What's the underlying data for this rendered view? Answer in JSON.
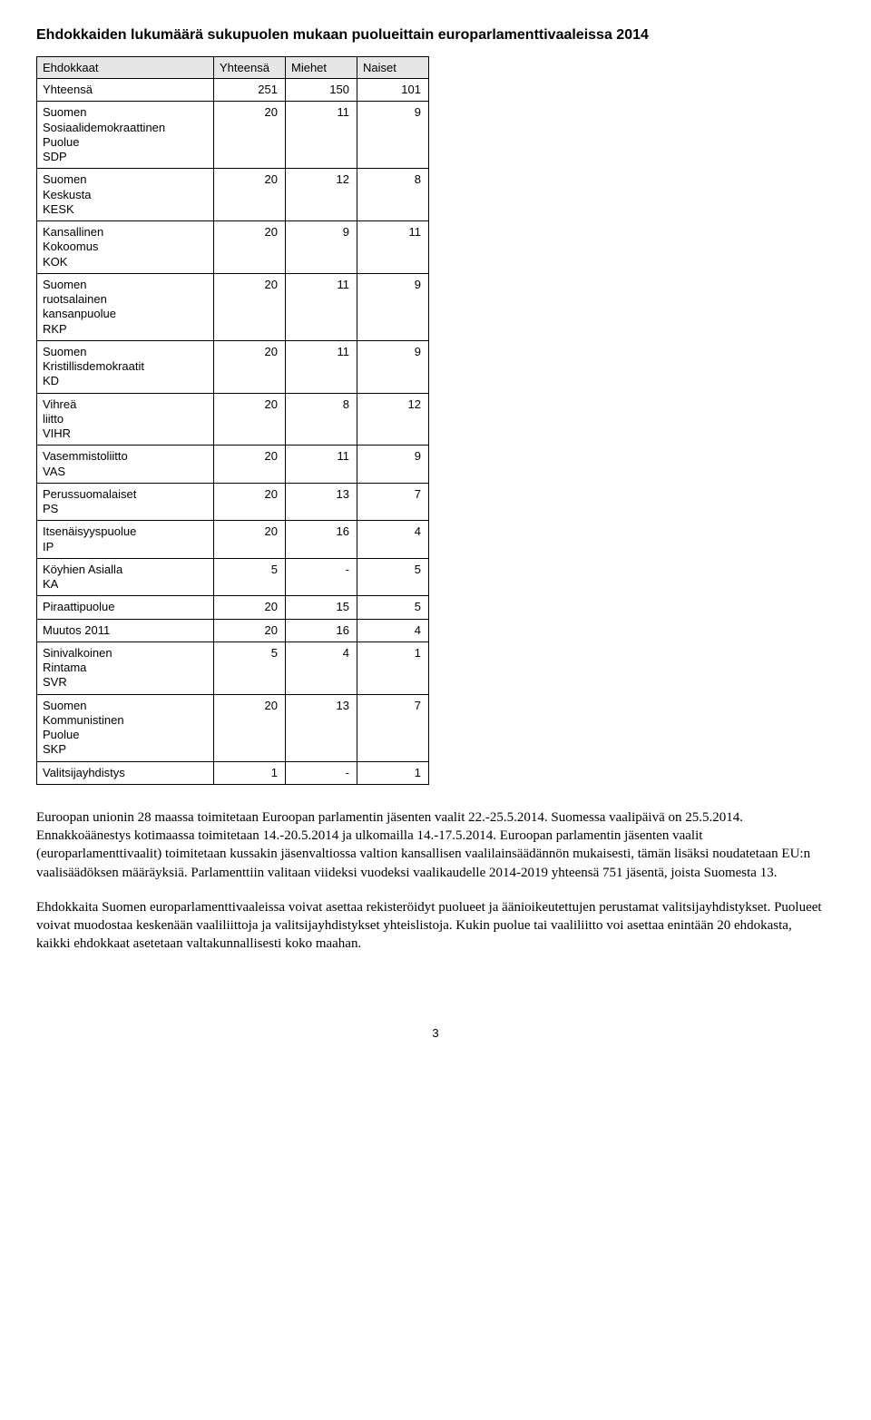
{
  "title": "Ehdokkaiden lukumäärä sukupuolen mukaan puolueittain europarlamenttivaaleissa 2014",
  "columns": [
    "Ehdokkaat",
    "Yhteensä",
    "Miehet",
    "Naiset"
  ],
  "rows": [
    {
      "label_lines": [
        "Yhteensä"
      ],
      "values": [
        "251",
        "150",
        "101"
      ]
    },
    {
      "label_lines": [
        "Suomen",
        "Sosiaalidemokraattinen",
        "Puolue",
        "SDP"
      ],
      "values": [
        "20",
        "11",
        "9"
      ]
    },
    {
      "label_lines": [
        "Suomen",
        "Keskusta",
        "KESK"
      ],
      "values": [
        "20",
        "12",
        "8"
      ]
    },
    {
      "label_lines": [
        "Kansallinen",
        "Kokoomus",
        "KOK"
      ],
      "values": [
        "20",
        "9",
        "11"
      ]
    },
    {
      "label_lines": [
        "Suomen",
        "ruotsalainen",
        "kansanpuolue",
        "RKP"
      ],
      "values": [
        "20",
        "11",
        "9"
      ]
    },
    {
      "label_lines": [
        "Suomen",
        "Kristillisdemokraatit",
        "KD"
      ],
      "values": [
        "20",
        "11",
        "9"
      ]
    },
    {
      "label_lines": [
        "Vihreä",
        "liitto",
        "VIHR"
      ],
      "values": [
        "20",
        "8",
        "12"
      ]
    },
    {
      "label_lines": [
        "Vasemmistoliitto",
        "VAS"
      ],
      "values": [
        "20",
        "11",
        "9"
      ]
    },
    {
      "label_lines": [
        "Perussuomalaiset",
        "PS"
      ],
      "values": [
        "20",
        "13",
        "7"
      ]
    },
    {
      "label_lines": [
        "Itsenäisyyspuolue",
        "IP"
      ],
      "values": [
        "20",
        "16",
        "4"
      ]
    },
    {
      "label_lines": [
        "Köyhien Asialla",
        "KA"
      ],
      "values": [
        "5",
        "-",
        "5"
      ]
    },
    {
      "label_lines": [
        "Piraattipuolue"
      ],
      "values": [
        "20",
        "15",
        "5"
      ]
    },
    {
      "label_lines": [
        "Muutos 2011"
      ],
      "values": [
        "20",
        "16",
        "4"
      ]
    },
    {
      "label_lines": [
        "Sinivalkoinen",
        "Rintama",
        "SVR"
      ],
      "values": [
        "5",
        "4",
        "1"
      ]
    },
    {
      "label_lines": [
        "Suomen",
        "Kommunistinen",
        "Puolue",
        "SKP"
      ],
      "values": [
        "20",
        "13",
        "7"
      ]
    },
    {
      "label_lines": [
        "Valitsijayhdistys"
      ],
      "values": [
        "1",
        "-",
        "1"
      ]
    }
  ],
  "paragraphs": [
    "Euroopan unionin 28 maassa toimitetaan Euroopan parlamentin jäsenten vaalit 22.-25.5.2014. Suomessa vaalipäivä on 25.5.2014. Ennakkoäänestys kotimaassa toimitetaan 14.-20.5.2014 ja ulkomailla 14.-17.5.2014. Euroopan parlamentin jäsenten vaalit (europarlamenttivaalit) toimitetaan kussakin jäsenvaltiossa valtion kansallisen vaalilainsäädännön mukaisesti, tämän lisäksi noudatetaan EU:n vaalisäädöksen määräyksiä. Parlamenttiin valitaan viideksi vuodeksi vaalikaudelle 2014-2019 yhteensä 751 jäsentä, joista Suomesta 13.",
    "Ehdokkaita Suomen europarlamenttivaaleissa voivat asettaa rekisteröidyt puolueet ja äänioikeutettujen perustamat valitsijayhdistykset. Puolueet voivat muodostaa keskenään vaaliliittoja ja valitsijayhdistykset yhteislistoja. Kukin puolue tai vaaliliitto voi asettaa enintään 20 ehdokasta, kaikki ehdokkaat asetetaan valtakunnallisesti koko maahan."
  ],
  "page_number": "3"
}
